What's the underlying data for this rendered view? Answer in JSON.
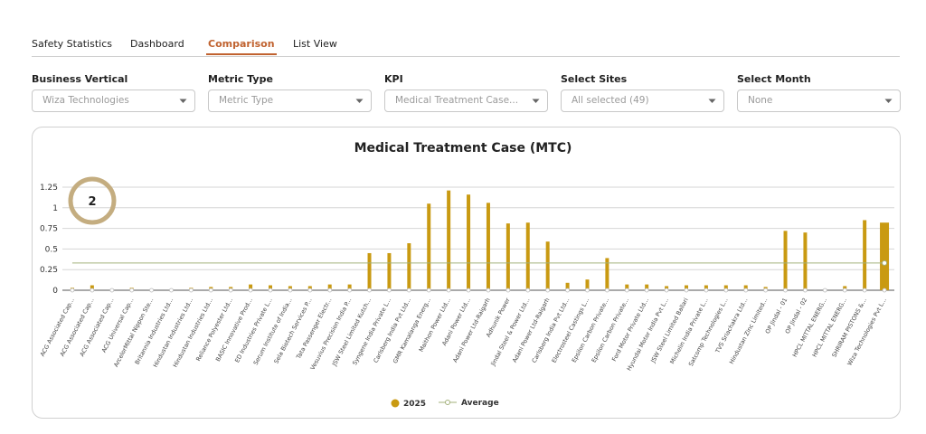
{
  "tabs": [
    "Safety Statistics",
    "Dashboard",
    "Comparison",
    "List View"
  ],
  "filters": [
    {
      "label": "Business Vertical",
      "value": "Wiza Technologies"
    },
    {
      "label": "Metric Type",
      "value": "Metric Type"
    },
    {
      "label": "KPI",
      "value": "Medical Treatment Case..."
    },
    {
      "label": "Select Sites",
      "value": "All selected (49)"
    },
    {
      "label": "Select Month",
      "value": "None"
    }
  ],
  "badge": "2",
  "chart_data": {
    "type": "bar",
    "title": "Medical Treatment Case (MTC)",
    "categories": [
      "ACG Associated Cap...",
      "ACG Associated Cap...",
      "ACG Associated Cap...",
      "ACG Universal Cap...",
      "ArcelorMittal Nippon Ste...",
      "Britannia Industries Ltd...",
      "Hindustan Industries Ltd...",
      "Hindustan Industries Ltd...",
      "Reliance Polyester Ltd...",
      "BASIC Innovative Prod...",
      "ED Industries Private L...",
      "Serum Institute of India...",
      "Sela Biotech Services P...",
      "Tata Passenger Electr...",
      "Vesuvius Precision India P...",
      "JSW Steel Limited Kutch...",
      "Syngene India Private L...",
      "Carlsberg India Pvt Ltd...",
      "GMR Kamalanga Energ...",
      "Maithon Power Ltd...",
      "Adani Power Ltd...",
      "Adani Power Ltd-Raigarh",
      "Adhunik Power",
      "Jindal Steel & Power Ltd...",
      "Adani Power Ltd-Raigarh",
      "Carlsberg India Pvt Ltd...",
      "Electrosteel Castings L...",
      "Epsilon Carbon Private...",
      "Epsilon Carbon Private...",
      "Ford Motor Private Ltd...",
      "Hyundai Motor India Pvt L...",
      "JSW Steel Limited Ballari",
      "Michelin India Private L...",
      "Satcomp Technologies L...",
      "TVS Sriachakra Ltd...",
      "Hindustan Zinc Limited...",
      "OP Jindal - 01",
      "OP Jindal - 02",
      "HPCL MITTAL ENERG...",
      "HPCL MITTAL ENERG...",
      "SHRIRAM PISTONS &...",
      "Wiza Technologies Pvt L..."
    ],
    "series": [
      {
        "name": "2025",
        "color": "#c99a12",
        "values": [
          0.03,
          0.06,
          0,
          0.03,
          0,
          0,
          0.03,
          0.04,
          0.04,
          0.07,
          0.06,
          0.05,
          0.05,
          0.07,
          0.07,
          0.45,
          0.45,
          0.57,
          1.05,
          1.21,
          1.16,
          1.06,
          0.81,
          0.82,
          0.59,
          0.09,
          0.13,
          0.39,
          0.07,
          0.07,
          0.05,
          0.06,
          0.06,
          0.06,
          0.06,
          0.04,
          0.72,
          0.7,
          0,
          0.05,
          0.85,
          0.82
        ]
      },
      {
        "name": "Average",
        "type": "line",
        "color": "#a3b07a",
        "values": [
          0.33,
          0.33,
          0.33,
          0.33,
          0.33,
          0.33,
          0.33,
          0.33,
          0.33,
          0.33,
          0.33,
          0.33,
          0.33,
          0.33,
          0.33,
          0.33,
          0.33,
          0.33,
          0.33,
          0.33,
          0.33,
          0.33,
          0.33,
          0.33,
          0.33,
          0.33,
          0.33,
          0.33,
          0.33,
          0.33,
          0.33,
          0.33,
          0.33,
          0.33,
          0.33,
          0.33,
          0.33,
          0.33,
          0.33,
          0.33,
          0.33,
          0.33
        ]
      }
    ],
    "ylim": [
      0,
      1.25
    ],
    "yticks": [
      0,
      0.25,
      0.5,
      0.75,
      1,
      1.25
    ],
    "grid": true,
    "legend": "bottom"
  }
}
